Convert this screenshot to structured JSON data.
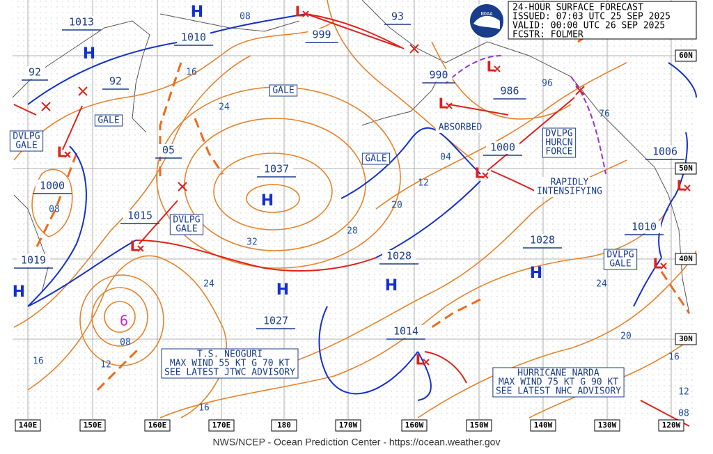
{
  "header": {
    "title": "24-HOUR SURFACE FORECAST",
    "issued": "ISSUED: 07:03 UTC 25 SEP 2025",
    "valid": "VALID:  00:00 UTC 26 SEP 2025",
    "forecaster": "FCSTR:  FOLMER"
  },
  "logo": "NOAA",
  "footer": "NWS/NCEP - Ocean Prediction Center - https://ocean.weather.gov",
  "longitudes": [
    "140E",
    "150E",
    "160E",
    "170E",
    "180",
    "170W",
    "160W",
    "150W",
    "140W",
    "130W",
    "120W"
  ],
  "latitudes": [
    "60N",
    "50N",
    "40N",
    "30N"
  ],
  "pressure_labels": [
    "1013",
    "1010",
    "999",
    "93",
    "92",
    "92",
    "990",
    "986",
    "1000",
    "1006",
    "1000",
    "05",
    "1037",
    "1015",
    "1019",
    "1028",
    "1028",
    "1027",
    "1014",
    "1010"
  ],
  "isobar_labels": [
    "08",
    "16",
    "24",
    "96",
    "76",
    "04",
    "12",
    "20",
    "28",
    "32",
    "24",
    "08",
    "08",
    "16",
    "12",
    "16",
    "24",
    "20",
    "16",
    "12",
    "08"
  ],
  "highs": [
    "H",
    "H",
    "H",
    "H",
    "H",
    "H",
    "H"
  ],
  "lows": [
    "L",
    "L",
    "L",
    "L",
    "L",
    "L",
    "L",
    "L",
    "L"
  ],
  "boxed_notes": [
    [
      "GALE"
    ],
    [
      "GALE"
    ],
    [
      "DVLPG",
      "GALE"
    ],
    [
      "GALE"
    ],
    [
      "DVLPG",
      "GALE"
    ],
    [
      "DVLPG",
      "GALE"
    ],
    [
      "DVLPG",
      "HURCN",
      "FORCE"
    ]
  ],
  "notes": [
    [
      "ABSORBED"
    ],
    [
      "RAPIDLY",
      "INTENSIFYING"
    ]
  ],
  "advisories": [
    [
      "T.S. NEOGURI",
      "MAX WIND 55 KT G 70 KT",
      "SEE LATEST JTWC ADVISORY"
    ],
    [
      "HURRICANE NARDA",
      "MAX WIND 75 KT G 90 KT",
      "SEE LATEST NHC ADVISORY"
    ]
  ]
}
